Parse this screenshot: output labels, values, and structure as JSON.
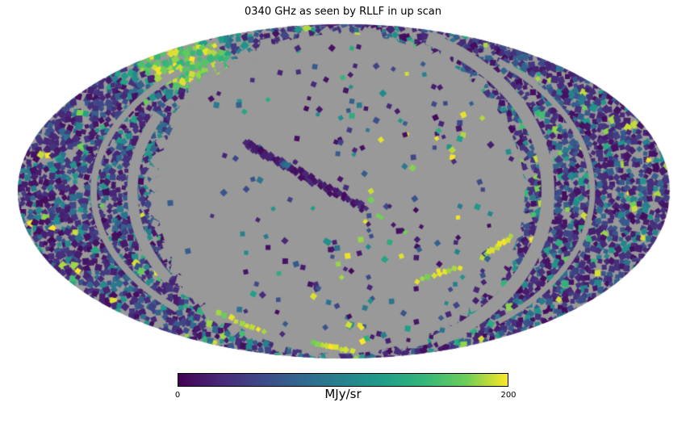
{
  "title": "0340 GHz as seen by RLLF in up scan",
  "colorbar": {
    "label": "MJy/sr",
    "tick_labels": [
      "0",
      "200"
    ],
    "min": 0,
    "max": 200
  },
  "chart_data": {
    "type": "heatmap",
    "projection": "mollweide",
    "title": "0340 GHz as seen by RLLF in up scan",
    "value_label": "MJy/sr",
    "value_range": [
      0,
      200
    ],
    "colormap": "viridis",
    "colormap_stops": [
      {
        "t": 0.0,
        "color": "#440154"
      },
      {
        "t": 0.125,
        "color": "#482878"
      },
      {
        "t": 0.25,
        "color": "#3e4989"
      },
      {
        "t": 0.375,
        "color": "#31688e"
      },
      {
        "t": 0.5,
        "color": "#26828e"
      },
      {
        "t": 0.625,
        "color": "#1f9e89"
      },
      {
        "t": 0.75,
        "color": "#35b779"
      },
      {
        "t": 0.875,
        "color": "#6ece58"
      },
      {
        "t": 1.0,
        "color": "#fde725"
      }
    ],
    "masked_color": "#999999",
    "background_color": "#ffffff",
    "features": [
      "elliptical Mollweide all-sky projection tiled with small diamond-shaped HEALPix-like pixels",
      "large gray unobserved/masked region covering the central part of the map",
      "outer ring densely speckled with low values (dark purple/blue) plus scattered teal, green and yellow pixels",
      "bright yellow-green hotspot near the upper-left limb",
      "dark diagonal streak of pixels crossing the central gray region from upper-left toward lower-right",
      "sparse colored pixels along curved scan trails inside the gray region, denser on its right half",
      "curved gray scan gaps cutting through the speckled outer region on the left and right sides",
      "short bright yellow streaks near the lower-left edge and right-center of the map"
    ]
  }
}
